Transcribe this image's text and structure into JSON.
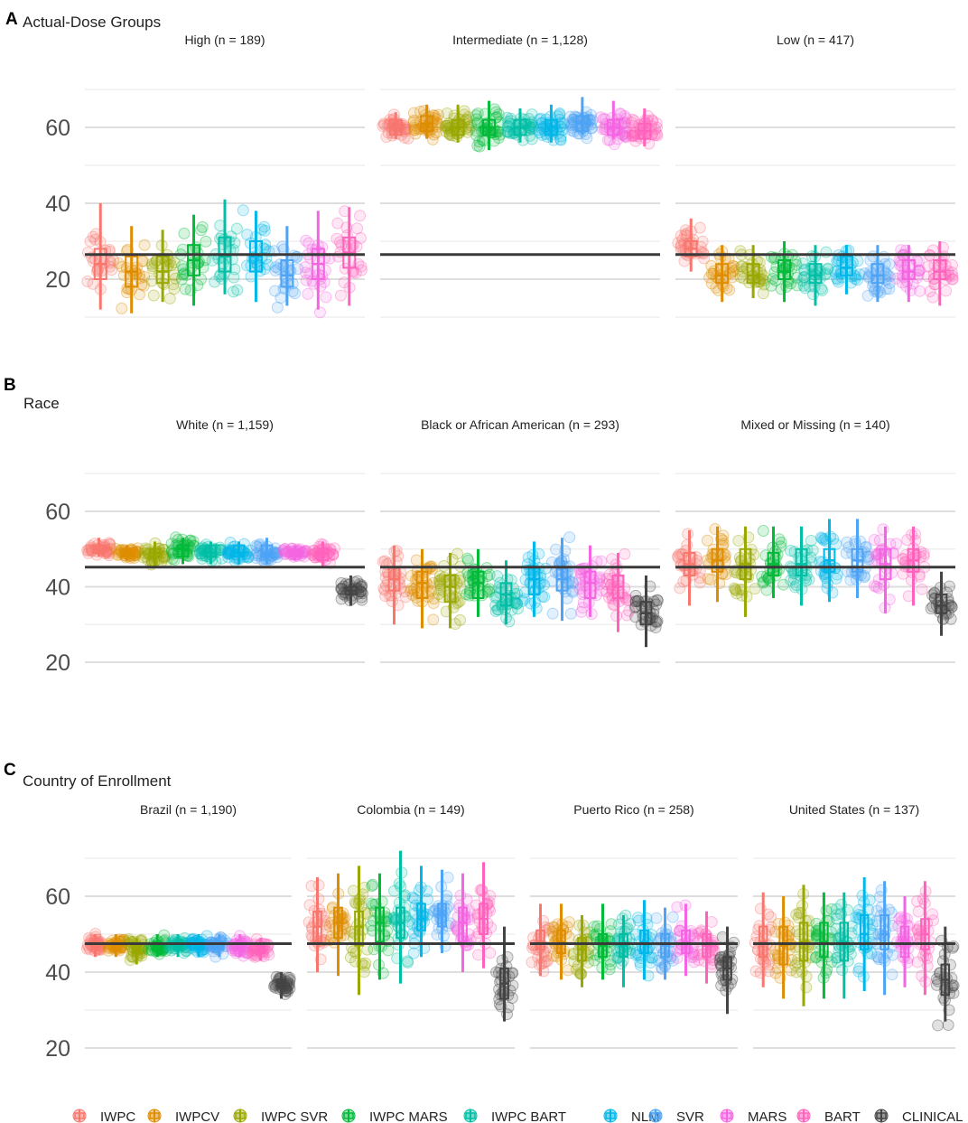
{
  "chart_data": {
    "type": "box-jitter",
    "colors": {
      "IWPC": "#F8766D",
      "IWPCV": "#DE8C00",
      "IWPC SVR": "#99A800",
      "IWPC MARS": "#00BA38",
      "IWPC BART": "#00BFA5",
      "NLM": "#00B7E9",
      "SVR": "#4DA3F5",
      "MARS": "#F564E3",
      "BART": "#FF62BC",
      "CLINICAL": "#444444"
    },
    "legend": [
      "IWPC",
      "IWPCV",
      "IWPC SVR",
      "IWPC MARS",
      "IWPC BART",
      "NLM",
      "SVR",
      "MARS",
      "BART",
      "CLINICAL"
    ],
    "sections": [
      {
        "letter": "A",
        "title": "Actual-Dose Groups",
        "reference_line": 26.5,
        "ylim": [
          8,
          72
        ],
        "yticks": [
          20,
          40,
          60
        ],
        "panels": [
          {
            "title": "High (n = 189)",
            "models": [
              "IWPC",
              "IWPCV",
              "IWPC SVR",
              "IWPC MARS",
              "IWPC BART",
              "NLM",
              "SVR",
              "MARS",
              "BART"
            ],
            "medians": [
              24,
              22,
              22,
              25,
              26,
              26,
              21,
              24,
              27
            ],
            "q1": [
              20,
              18,
              19,
              21,
              22,
              22,
              18,
              20,
              23
            ],
            "q3": [
              28,
              26,
              26,
              29,
              31,
              30,
              25,
              28,
              31
            ],
            "low": [
              12,
              11,
              14,
              13,
              16,
              14,
              13,
              12,
              13
            ],
            "high": [
              40,
              34,
              33,
              37,
              41,
              38,
              34,
              38,
              39
            ],
            "n_points": 26
          },
          {
            "title": "Intermediate (n = 1,128)",
            "models": [
              "IWPC",
              "IWPCV",
              "IWPC SVR",
              "IWPC MARS",
              "IWPC BART",
              "NLM",
              "SVR",
              "MARS",
              "BART"
            ],
            "medians": [
              60,
              61,
              60,
              60,
              60,
              60,
              61,
              60,
              59
            ],
            "q1": [
              58,
              59,
              58,
              58,
              58,
              58,
              59,
              58,
              57
            ],
            "q3": [
              62,
              63,
              62,
              62,
              62,
              62,
              63,
              62,
              61
            ],
            "low": [
              57,
              57,
              56,
              54,
              56,
              56,
              58,
              57,
              55
            ],
            "high": [
              64,
              66,
              66,
              67,
              65,
              66,
              68,
              67,
              65
            ],
            "n_points": 40
          },
          {
            "title": "Low (n = 417)",
            "models": [
              "IWPC",
              "IWPCV",
              "IWPC SVR",
              "IWPC MARS",
              "IWPC BART",
              "NLM",
              "SVR",
              "MARS",
              "BART"
            ],
            "medians": [
              28,
              21,
              21,
              22,
              21,
              23,
              21,
              22,
              22
            ],
            "q1": [
              26,
              19,
              19,
              20,
              19,
              21,
              19,
              20,
              20
            ],
            "q3": [
              30,
              24,
              24,
              25,
              24,
              26,
              24,
              25,
              25
            ],
            "low": [
              22,
              14,
              15,
              14,
              13,
              16,
              14,
              14,
              13
            ],
            "high": [
              36,
              29,
              29,
              30,
              29,
              29,
              29,
              29,
              30
            ],
            "n_points": 30
          }
        ]
      },
      {
        "letter": "B",
        "title": "Race",
        "reference_line": 45.2,
        "ylim": [
          15,
          72
        ],
        "yticks": [
          20,
          40,
          60
        ],
        "panels": [
          {
            "title": "White (n = 1,159)",
            "models": [
              "IWPC",
              "IWPCV",
              "IWPC SVR",
              "IWPC MARS",
              "IWPC BART",
              "NLM",
              "SVR",
              "MARS",
              "BART",
              "CLINICAL"
            ],
            "medians": [
              50,
              49,
              49,
              50,
              49,
              49,
              49,
              49,
              49,
              39
            ],
            "q1": [
              49,
              48,
              48,
              48,
              48,
              48,
              48,
              48,
              47,
              38
            ],
            "q3": [
              51,
              50,
              50,
              51,
              51,
              51,
              51,
              50,
              50,
              40
            ],
            "low": [
              48,
              47,
              45,
              46,
              46,
              46,
              46,
              47,
              45,
              35
            ],
            "high": [
              53,
              51,
              52,
              53,
              52,
              52,
              53,
              51,
              52,
              43
            ],
            "n_points": 36
          },
          {
            "title": "Black or African American (n = 293)",
            "models": [
              "IWPC",
              "IWPCV",
              "IWPC SVR",
              "IWPC MARS",
              "IWPC BART",
              "NLM",
              "SVR",
              "MARS",
              "BART",
              "CLINICAL"
            ],
            "medians": [
              42,
              41,
              40,
              41,
              38,
              42,
              42,
              41,
              40,
              33
            ],
            "q1": [
              39,
              37,
              36,
              37,
              35,
              38,
              39,
              37,
              37,
              30
            ],
            "q3": [
              45,
              44,
              43,
              44,
              41,
              45,
              45,
              44,
              43,
              36
            ],
            "low": [
              30,
              29,
              29,
              32,
              30,
              32,
              31,
              32,
              28,
              24
            ],
            "high": [
              51,
              50,
              49,
              50,
              47,
              52,
              53,
              51,
              49,
              43
            ],
            "n_points": 34
          },
          {
            "title": "Mixed or Missing (n = 140)",
            "models": [
              "IWPC",
              "IWPCV",
              "IWPC SVR",
              "IWPC MARS",
              "IWPC BART",
              "NLM",
              "SVR",
              "MARS",
              "BART",
              "CLINICAL"
            ],
            "medians": [
              46,
              47,
              46,
              46,
              46,
              47,
              47,
              46,
              47,
              35
            ],
            "q1": [
              43,
              44,
              42,
              43,
              43,
              44,
              44,
              42,
              44,
              33
            ],
            "q3": [
              49,
              50,
              50,
              49,
              50,
              50,
              50,
              50,
              50,
              38
            ],
            "low": [
              35,
              36,
              32,
              37,
              35,
              36,
              37,
              33,
              35,
              27
            ],
            "high": [
              55,
              56,
              56,
              56,
              56,
              58,
              58,
              56,
              56,
              44
            ],
            "n_points": 28
          }
        ]
      },
      {
        "letter": "C",
        "title": "Country of Enrollment",
        "reference_line": 47.5,
        "ylim": [
          15,
          78
        ],
        "yticks": [
          20,
          40,
          60
        ],
        "panels": [
          {
            "title": "Brazil (n = 1,190)",
            "models": [
              "IWPC",
              "IWPCV",
              "IWPC SVR",
              "IWPC MARS",
              "IWPC BART",
              "NLM",
              "SVR",
              "MARS",
              "BART",
              "CLINICAL"
            ],
            "medians": [
              47,
              47,
              46,
              47,
              47,
              47,
              47,
              47,
              46,
              37
            ],
            "q1": [
              46,
              46,
              45,
              46,
              46,
              46,
              46,
              46,
              45,
              36
            ],
            "q3": [
              48,
              48,
              47,
              48,
              48,
              48,
              48,
              48,
              47,
              38
            ],
            "low": [
              44,
              44,
              42,
              44,
              44,
              44,
              44,
              44,
              43,
              33
            ],
            "high": [
              50,
              50,
              49,
              50,
              50,
              50,
              50,
              50,
              49,
              40
            ],
            "n_points": 36
          },
          {
            "title": "Colombia (n = 149)",
            "models": [
              "IWPC",
              "IWPCV",
              "IWPC SVR",
              "IWPC MARS",
              "IWPC BART",
              "NLM",
              "SVR",
              "MARS",
              "BART",
              "CLINICAL"
            ],
            "medians": [
              52,
              53,
              52,
              53,
              53,
              54,
              55,
              53,
              54,
              37
            ],
            "q1": [
              48,
              49,
              47,
              48,
              49,
              51,
              52,
              48,
              50,
              33
            ],
            "q3": [
              56,
              57,
              56,
              57,
              57,
              58,
              58,
              57,
              58,
              41
            ],
            "low": [
              40,
              39,
              34,
              38,
              37,
              44,
              45,
              40,
              41,
              27
            ],
            "high": [
              65,
              66,
              68,
              66,
              72,
              68,
              67,
              66,
              69,
              52
            ],
            "n_points": 28
          },
          {
            "title": "Puerto Rico (n = 258)",
            "models": [
              "IWPC",
              "IWPCV",
              "IWPC SVR",
              "IWPC MARS",
              "IWPC BART",
              "NLM",
              "SVR",
              "MARS",
              "BART",
              "CLINICAL"
            ],
            "medians": [
              48,
              48,
              46,
              47,
              47,
              48,
              47,
              48,
              47,
              41
            ],
            "q1": [
              46,
              45,
              43,
              44,
              44,
              45,
              44,
              45,
              44,
              38
            ],
            "q3": [
              51,
              51,
              49,
              50,
              50,
              51,
              50,
              51,
              50,
              44
            ],
            "low": [
              39,
              38,
              36,
              38,
              36,
              38,
              38,
              39,
              37,
              29
            ],
            "high": [
              58,
              58,
              55,
              58,
              55,
              59,
              57,
              58,
              56,
              52
            ],
            "n_points": 30
          },
          {
            "title": "United States (n = 137)",
            "models": [
              "IWPC",
              "IWPCV",
              "IWPC SVR",
              "IWPC MARS",
              "IWPC BART",
              "NLM",
              "SVR",
              "MARS",
              "BART",
              "CLINICAL"
            ],
            "medians": [
              48,
              47,
              48,
              48,
              48,
              50,
              50,
              48,
              50,
              38
            ],
            "q1": [
              44,
              42,
              43,
              44,
              43,
              46,
              46,
              44,
              46,
              34
            ],
            "q3": [
              52,
              52,
              53,
              53,
              53,
              55,
              55,
              52,
              54,
              42
            ],
            "low": [
              36,
              33,
              31,
              33,
              33,
              35,
              34,
              36,
              34,
              27
            ],
            "high": [
              61,
              60,
              63,
              61,
              61,
              65,
              64,
              60,
              64,
              52
            ],
            "n_points": 28
          }
        ]
      }
    ]
  }
}
